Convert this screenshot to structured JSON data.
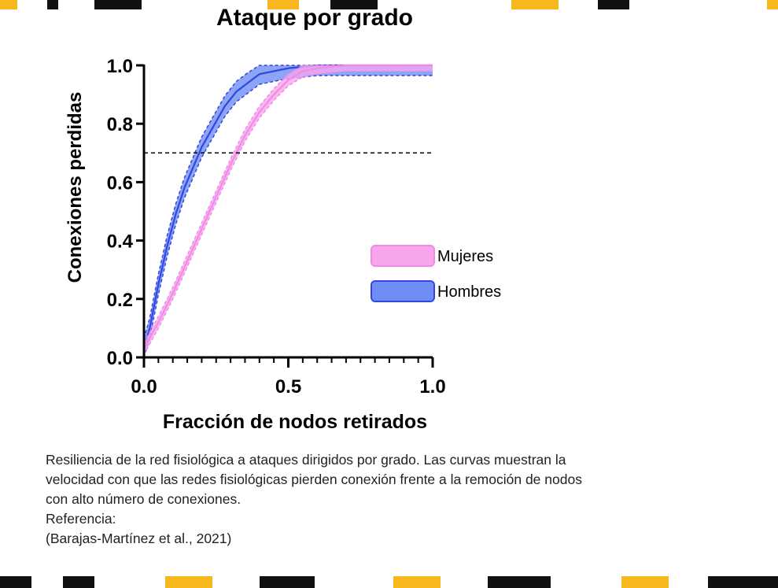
{
  "colors": {
    "mujeres": "#f08ae6",
    "mujeres_band": "#f7a6ee",
    "hombres": "#3345e0",
    "hombres_band": "#6f8ef5",
    "axis": "#000000",
    "threshold": "#000000",
    "decor_accent": "#f6b81c"
  },
  "chart_data": {
    "type": "line",
    "title": "Ataque por grado",
    "xlabel": "Fracción de nodos retirados",
    "ylabel": "Conexiones perdidas",
    "xlim": [
      0,
      1
    ],
    "ylim": [
      0,
      1
    ],
    "x_ticks": [
      "0.0",
      "0.5",
      "1.0"
    ],
    "y_ticks": [
      "0.0",
      "0.2",
      "0.4",
      "0.6",
      "0.8",
      "1.0"
    ],
    "threshold": {
      "y": 0.7,
      "style": "dashed"
    },
    "legend_position": "right",
    "series": [
      {
        "name": "Mujeres",
        "color": "#f08ae6",
        "points": [
          [
            0.0,
            0.03
          ],
          [
            0.05,
            0.12
          ],
          [
            0.1,
            0.22
          ],
          [
            0.15,
            0.33
          ],
          [
            0.2,
            0.44
          ],
          [
            0.25,
            0.55
          ],
          [
            0.3,
            0.66
          ],
          [
            0.35,
            0.76
          ],
          [
            0.4,
            0.84
          ],
          [
            0.45,
            0.9
          ],
          [
            0.5,
            0.95
          ],
          [
            0.55,
            0.98
          ],
          [
            0.6,
            0.99
          ],
          [
            0.7,
            1.0
          ],
          [
            0.8,
            1.0
          ],
          [
            0.9,
            1.0
          ],
          [
            1.0,
            1.0
          ]
        ],
        "band": 0.02
      },
      {
        "name": "Hombres",
        "color": "#3345e0",
        "points": [
          [
            0.0,
            0.03
          ],
          [
            0.02,
            0.1
          ],
          [
            0.05,
            0.25
          ],
          [
            0.08,
            0.38
          ],
          [
            0.11,
            0.49
          ],
          [
            0.14,
            0.58
          ],
          [
            0.17,
            0.65
          ],
          [
            0.2,
            0.72
          ],
          [
            0.24,
            0.79
          ],
          [
            0.28,
            0.86
          ],
          [
            0.32,
            0.91
          ],
          [
            0.36,
            0.94
          ],
          [
            0.4,
            0.97
          ],
          [
            0.5,
            0.99
          ],
          [
            0.6,
            1.0
          ],
          [
            0.8,
            1.0
          ],
          [
            1.0,
            1.0
          ]
        ],
        "band": 0.035
      }
    ]
  },
  "caption": {
    "lines": [
      "Resiliencia de la red fisiológica a ataques dirigidos por grado. Las curvas muestran la",
      "velocidad con que las redes fisiológicas pierden conexión frente a la remoción de nodos",
      "con alto número de conexiones.",
      "Referencia:",
      "(Barajas-Martínez et al., 2021)"
    ]
  }
}
